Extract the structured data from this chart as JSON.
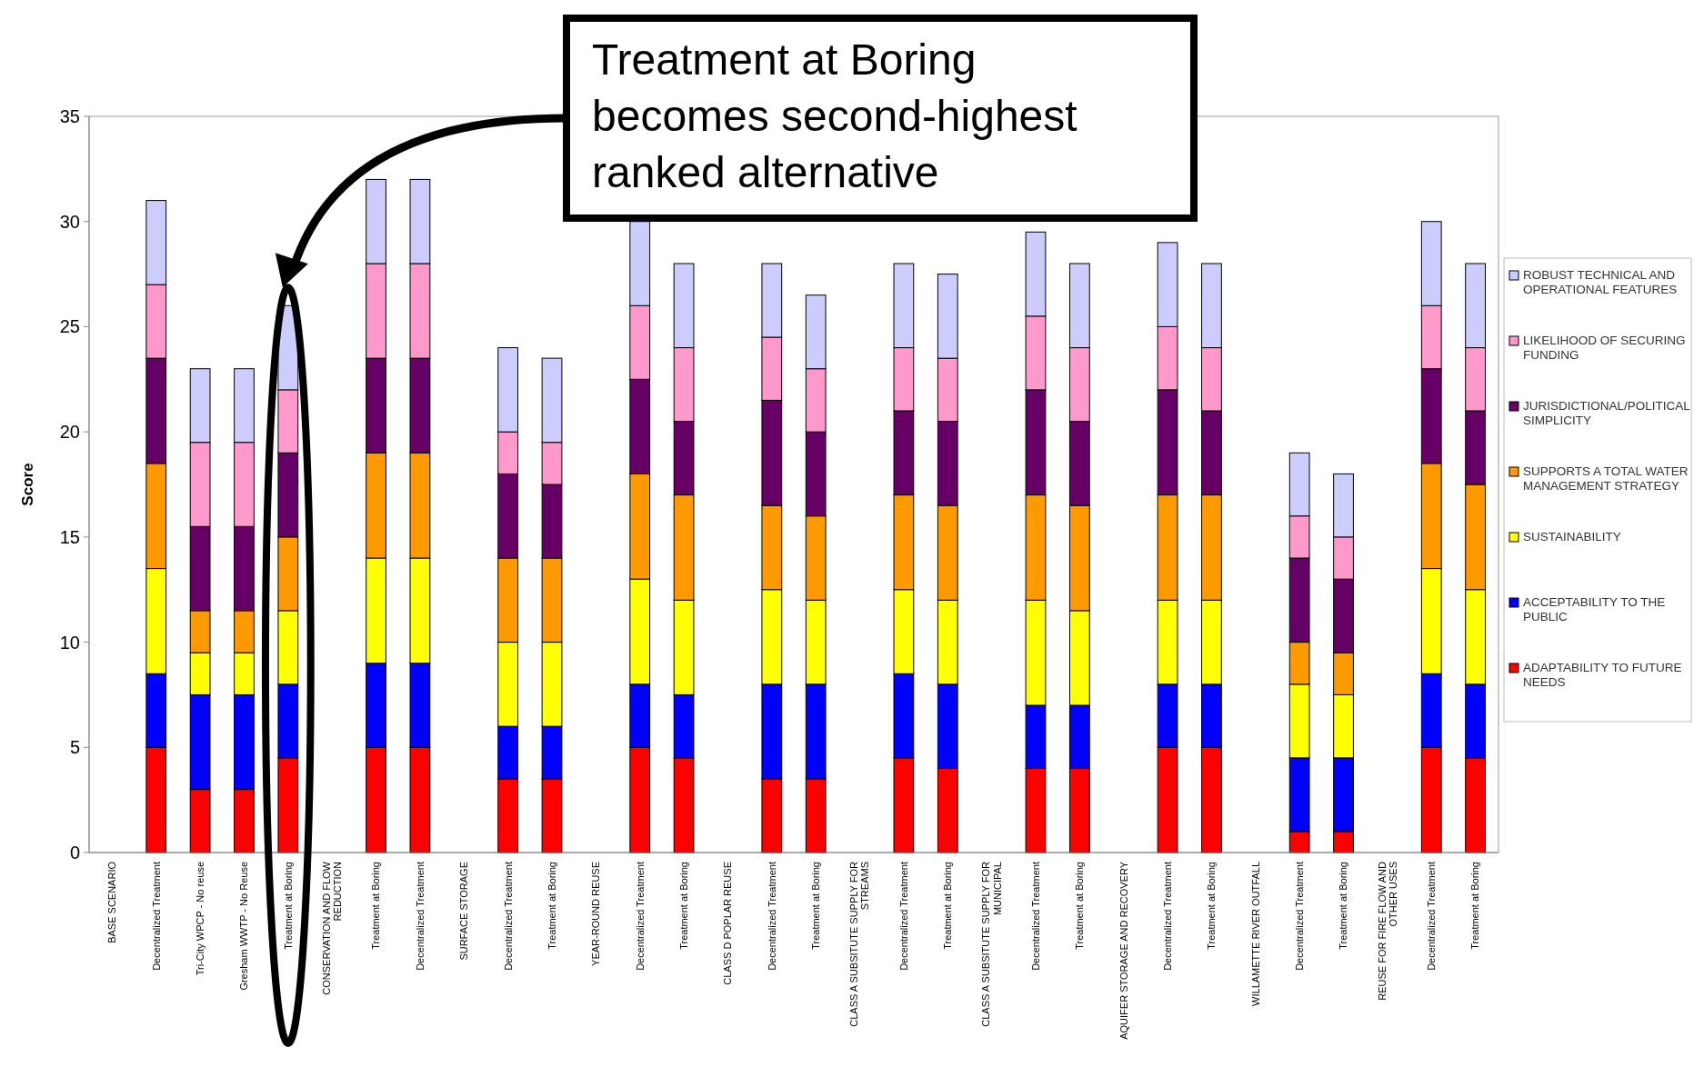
{
  "chart_data": {
    "type": "bar",
    "stacked": true,
    "ylabel": "Score",
    "ylim": [
      0,
      35
    ],
    "yticks": [
      0,
      5,
      10,
      15,
      20,
      25,
      30,
      35
    ],
    "grid": false,
    "legend": "right",
    "annotations": [
      "Treatment at Boring becomes second-highest ranked alternative"
    ],
    "categories": [
      "BASE SCENARIO",
      "Decentralized Treatment",
      "Tri-City WPCP - No reuse",
      "Gresham WWTP - No Reuse",
      "Treatment at Boring",
      "CONSERVATION AND FLOW REDUCTION",
      "Treatment at Boring",
      "Decentralized Treatment",
      "SURFACE STORAGE",
      "Decentralized Treatment",
      "Treatment at Boring",
      "YEAR-ROUND REUSE",
      "Decentralized Treatment",
      "Treatment at Boring",
      "CLASS D POPLAR REUSE",
      "Decentralized Treatment",
      "Treatment at Boring",
      "CLASS A SUBSITUTE SUPPLY FOR STREAMS",
      "Decentralized Treatment",
      "Treatment at Boring",
      "CLASS A SUBSITUTE SUPPLY FOR MUNICIPAL",
      "Decentralized Treatment",
      "Treatment at Boring",
      "AQUIFER STORAGE AND RECOVERY",
      "Decentralized Treatment",
      "Treatment at Boring",
      "WILLAMETTE RIVER OUTFALL",
      "Decentralized Treatment",
      "Treatment at Boring",
      "REUSE FOR FIRE FLOW AND OTHER USES",
      "Decentralized Treatment",
      "Treatment at Boring"
    ],
    "series": [
      {
        "name": "ADAPTABILITY TO FUTURE NEEDS",
        "color": "#ff0000",
        "values": [
          null,
          5,
          3,
          3,
          4.5,
          null,
          5,
          5,
          null,
          3.5,
          3.5,
          null,
          5,
          4.5,
          null,
          3.5,
          3.5,
          null,
          4.5,
          4,
          null,
          4,
          4,
          null,
          5,
          5,
          null,
          1,
          1,
          null,
          5,
          4.5
        ]
      },
      {
        "name": "ACCEPTABILITY TO THE PUBLIC",
        "color": "#0000ff",
        "values": [
          null,
          3.5,
          4.5,
          4.5,
          3.5,
          null,
          4,
          4,
          null,
          2.5,
          2.5,
          null,
          3,
          3,
          null,
          4.5,
          4.5,
          null,
          4,
          4,
          null,
          3,
          3,
          null,
          3,
          3,
          null,
          3.5,
          3.5,
          null,
          3.5,
          3.5
        ]
      },
      {
        "name": "SUSTAINABILITY",
        "color": "#ffff00",
        "values": [
          null,
          5,
          2,
          2,
          3.5,
          null,
          5,
          5,
          null,
          4,
          4,
          null,
          5,
          4.5,
          null,
          4.5,
          4,
          null,
          4,
          4,
          null,
          5,
          4.5,
          null,
          4,
          4,
          null,
          3.5,
          3,
          null,
          5,
          4.5
        ]
      },
      {
        "name": "SUPPORTS A TOTAL WATER MANAGEMENT STRATEGY",
        "color": "#ff9900",
        "values": [
          null,
          5,
          2,
          2,
          3.5,
          null,
          5,
          5,
          null,
          4,
          4,
          null,
          5,
          5,
          null,
          4,
          4,
          null,
          4.5,
          4.5,
          null,
          5,
          5,
          null,
          5,
          5,
          null,
          2,
          2,
          null,
          5,
          5
        ]
      },
      {
        "name": "JURISDICTIONAL/POLITICAL SIMPLICITY",
        "color": "#660066",
        "values": [
          null,
          5,
          4,
          4,
          4,
          null,
          4.5,
          4.5,
          null,
          4,
          3.5,
          null,
          4.5,
          3.5,
          null,
          5,
          4,
          null,
          4,
          4,
          null,
          5,
          4,
          null,
          5,
          4,
          null,
          4,
          3.5,
          null,
          4.5,
          3.5
        ]
      },
      {
        "name": "LIKELIHOOD OF SECURING FUNDING",
        "color": "#ff99cc",
        "values": [
          null,
          3.5,
          4,
          4,
          3,
          null,
          4.5,
          4.5,
          null,
          2,
          2,
          null,
          3.5,
          3.5,
          null,
          3,
          3,
          null,
          3,
          3,
          null,
          3.5,
          3.5,
          null,
          3,
          3,
          null,
          2,
          2,
          null,
          3,
          3
        ]
      },
      {
        "name": "ROBUST TECHNICAL AND OPERATIONAL FEATURES",
        "color": "#ccccff",
        "values": [
          null,
          4,
          3.5,
          3.5,
          4,
          null,
          4,
          4,
          null,
          4,
          4,
          null,
          4,
          4,
          null,
          3.5,
          3.5,
          null,
          4,
          4,
          null,
          4,
          4,
          null,
          4,
          4,
          null,
          3,
          3,
          null,
          4,
          4
        ]
      }
    ]
  }
}
